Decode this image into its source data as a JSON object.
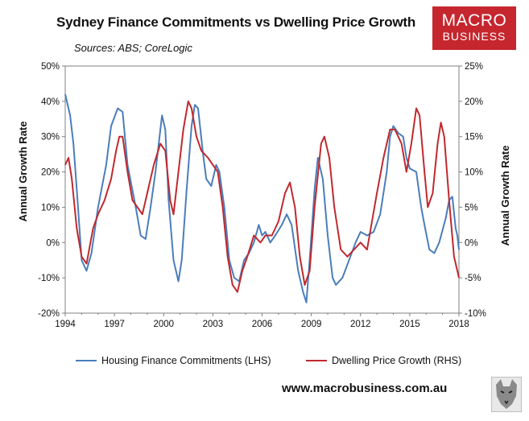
{
  "brand": {
    "logo_line1": "MACRO",
    "logo_line2": "BUSINESS",
    "site": "www.macrobusiness.com.au"
  },
  "chart_data": {
    "type": "line",
    "title": "Sydney Finance Commitments vs Dwelling Price Growth",
    "subtitle": "Sources: ABS; CoreLogic",
    "xlabel": "",
    "ylabel_left": "Annual Growth Rate",
    "ylabel_right": "Annual Growth Rate",
    "xlim": [
      1994,
      2018
    ],
    "ylim_left": [
      -20,
      50
    ],
    "ylim_right": [
      -10,
      25
    ],
    "x_ticks": [
      "1994",
      "1997",
      "2000",
      "2003",
      "2006",
      "2009",
      "2012",
      "2015",
      "2018"
    ],
    "y_ticks_left": [
      "-20%",
      "-10%",
      "0%",
      "10%",
      "20%",
      "30%",
      "40%",
      "50%"
    ],
    "y_ticks_right": [
      "-10%",
      "-5%",
      "0%",
      "5%",
      "10%",
      "15%",
      "20%",
      "25%"
    ],
    "grid": false,
    "legend_position": "bottom",
    "series": [
      {
        "name": "Housing Finance Commitments (LHS)",
        "axis": "left",
        "color": "#4a7ebb",
        "points": [
          [
            1994,
            42
          ],
          [
            1994.3,
            36
          ],
          [
            1994.5,
            28
          ],
          [
            1994.75,
            12
          ],
          [
            1995,
            -5
          ],
          [
            1995.3,
            -8
          ],
          [
            1995.6,
            -3
          ],
          [
            1996,
            10
          ],
          [
            1996.5,
            22
          ],
          [
            1996.8,
            33
          ],
          [
            1997.2,
            38
          ],
          [
            1997.5,
            37
          ],
          [
            1997.8,
            22
          ],
          [
            1998.3,
            10
          ],
          [
            1998.6,
            2
          ],
          [
            1998.9,
            1
          ],
          [
            1999.2,
            10
          ],
          [
            1999.5,
            20
          ],
          [
            1999.9,
            36
          ],
          [
            2000.1,
            32
          ],
          [
            2000.3,
            12
          ],
          [
            2000.6,
            -5
          ],
          [
            2000.9,
            -11
          ],
          [
            2001.1,
            -5
          ],
          [
            2001.4,
            15
          ],
          [
            2001.7,
            33
          ],
          [
            2001.9,
            39
          ],
          [
            2002.1,
            38
          ],
          [
            2002.4,
            25
          ],
          [
            2002.6,
            18
          ],
          [
            2002.9,
            16
          ],
          [
            2003.2,
            22
          ],
          [
            2003.4,
            20
          ],
          [
            2003.7,
            10
          ],
          [
            2004,
            -5
          ],
          [
            2004.3,
            -10
          ],
          [
            2004.6,
            -11
          ],
          [
            2004.9,
            -5
          ],
          [
            2005.2,
            -3
          ],
          [
            2005.5,
            0
          ],
          [
            2005.8,
            5
          ],
          [
            2006,
            2
          ],
          [
            2006.2,
            3
          ],
          [
            2006.5,
            0
          ],
          [
            2006.8,
            2
          ],
          [
            2007.2,
            5
          ],
          [
            2007.5,
            8
          ],
          [
            2007.8,
            5
          ],
          [
            2008.2,
            -8
          ],
          [
            2008.5,
            -14
          ],
          [
            2008.7,
            -17
          ],
          [
            2008.9,
            -5
          ],
          [
            2009.2,
            15
          ],
          [
            2009.4,
            24
          ],
          [
            2009.7,
            18
          ],
          [
            2010,
            2
          ],
          [
            2010.3,
            -10
          ],
          [
            2010.5,
            -12
          ],
          [
            2010.9,
            -10
          ],
          [
            2011.3,
            -5
          ],
          [
            2011.7,
            0
          ],
          [
            2012,
            3
          ],
          [
            2012.4,
            2
          ],
          [
            2012.8,
            3
          ],
          [
            2013.2,
            8
          ],
          [
            2013.6,
            20
          ],
          [
            2013.8,
            30
          ],
          [
            2014,
            33
          ],
          [
            2014.3,
            31
          ],
          [
            2014.6,
            30
          ],
          [
            2014.8,
            24
          ],
          [
            2015,
            21
          ],
          [
            2015.4,
            20
          ],
          [
            2015.7,
            10
          ],
          [
            2015.9,
            5
          ],
          [
            2016.2,
            -2
          ],
          [
            2016.5,
            -3
          ],
          [
            2016.8,
            0
          ],
          [
            2017.2,
            7
          ],
          [
            2017.4,
            12
          ],
          [
            2017.6,
            13
          ],
          [
            2017.8,
            4
          ],
          [
            2017.9,
            2
          ],
          [
            2018,
            -2
          ]
        ]
      },
      {
        "name": "Dwelling Price Growth (RHS)",
        "axis": "right",
        "color": "#c0292e",
        "points": [
          [
            1994,
            11
          ],
          [
            1994.2,
            12
          ],
          [
            1994.4,
            9
          ],
          [
            1994.7,
            2
          ],
          [
            1995,
            -2
          ],
          [
            1995.3,
            -3
          ],
          [
            1995.7,
            2
          ],
          [
            1996,
            4
          ],
          [
            1996.4,
            6
          ],
          [
            1996.8,
            9
          ],
          [
            1997.1,
            13
          ],
          [
            1997.3,
            15
          ],
          [
            1997.5,
            15
          ],
          [
            1997.8,
            10
          ],
          [
            1998.1,
            6
          ],
          [
            1998.4,
            5
          ],
          [
            1998.7,
            4
          ],
          [
            1999,
            7
          ],
          [
            1999.4,
            11
          ],
          [
            1999.8,
            14
          ],
          [
            2000.1,
            13
          ],
          [
            2000.4,
            6
          ],
          [
            2000.6,
            4
          ],
          [
            2000.9,
            10
          ],
          [
            2001.2,
            16
          ],
          [
            2001.5,
            20
          ],
          [
            2001.7,
            19
          ],
          [
            2002,
            15
          ],
          [
            2002.3,
            13
          ],
          [
            2002.7,
            12
          ],
          [
            2003,
            11
          ],
          [
            2003.3,
            10
          ],
          [
            2003.6,
            5
          ],
          [
            2003.9,
            -2
          ],
          [
            2004.2,
            -6
          ],
          [
            2004.5,
            -7
          ],
          [
            2004.8,
            -4
          ],
          [
            2005.1,
            -2
          ],
          [
            2005.5,
            1
          ],
          [
            2005.9,
            0
          ],
          [
            2006.2,
            1
          ],
          [
            2006.6,
            1
          ],
          [
            2007,
            3
          ],
          [
            2007.4,
            7
          ],
          [
            2007.7,
            8.5
          ],
          [
            2008,
            5
          ],
          [
            2008.3,
            -2
          ],
          [
            2008.6,
            -6
          ],
          [
            2008.9,
            -4
          ],
          [
            2009.2,
            5
          ],
          [
            2009.6,
            14
          ],
          [
            2009.8,
            15
          ],
          [
            2010.1,
            12
          ],
          [
            2010.4,
            5
          ],
          [
            2010.8,
            -1
          ],
          [
            2011.2,
            -2
          ],
          [
            2011.6,
            -1
          ],
          [
            2012,
            0
          ],
          [
            2012.4,
            -1
          ],
          [
            2012.7,
            3
          ],
          [
            2013,
            7
          ],
          [
            2013.4,
            12
          ],
          [
            2013.8,
            16
          ],
          [
            2014.1,
            16
          ],
          [
            2014.5,
            14
          ],
          [
            2014.8,
            10
          ],
          [
            2015.1,
            14
          ],
          [
            2015.4,
            19
          ],
          [
            2015.6,
            18
          ],
          [
            2015.9,
            10
          ],
          [
            2016.1,
            5
          ],
          [
            2016.4,
            7
          ],
          [
            2016.7,
            14
          ],
          [
            2016.9,
            17
          ],
          [
            2017.1,
            15
          ],
          [
            2017.4,
            6
          ],
          [
            2017.7,
            -2
          ],
          [
            2017.9,
            -4
          ],
          [
            2018,
            -5
          ]
        ]
      }
    ]
  }
}
